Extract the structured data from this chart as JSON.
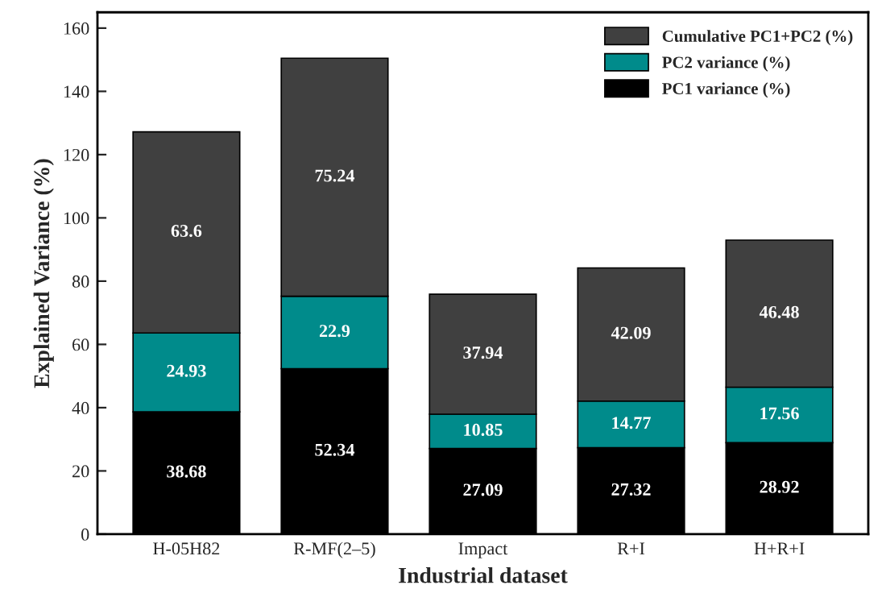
{
  "chart_data": {
    "type": "bar",
    "stacked": true,
    "data_labels": true,
    "xlabel": "Industrial dataset",
    "ylabel": "Explained Variance (%)",
    "categories": [
      "H-05H82",
      "R-MF(2–5)",
      "Impact",
      "R+I",
      "H+R+I"
    ],
    "series": [
      {
        "name": "PC1 variance (%)",
        "color": "#000000",
        "values": [
          38.68,
          52.34,
          27.09,
          27.32,
          28.92
        ]
      },
      {
        "name": "PC2 variance (%)",
        "color": "#008b8b",
        "values": [
          24.93,
          22.9,
          10.85,
          14.77,
          17.56
        ]
      },
      {
        "name": "Cumulative PC1+PC2 (%)",
        "color": "#404040",
        "values": [
          63.6,
          75.24,
          37.94,
          42.09,
          46.48
        ]
      }
    ],
    "ylim": [
      0,
      165
    ],
    "yticks": [
      0,
      20,
      40,
      60,
      80,
      100,
      120,
      140,
      160
    ],
    "legend": "top right",
    "grid": false
  }
}
